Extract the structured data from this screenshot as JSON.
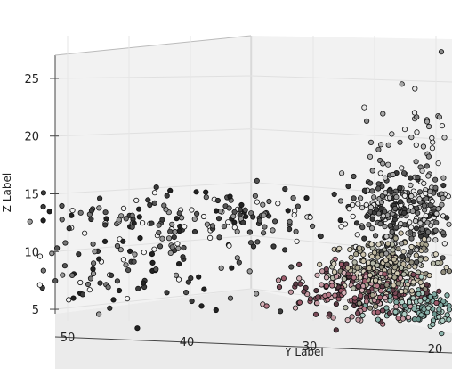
{
  "chart_data": {
    "type": "scatter",
    "projection": "3d",
    "title": "",
    "xlabel": "",
    "ylabel": "Y Label",
    "zlabel": "Z Label",
    "y_ticks": [
      "50",
      "40",
      "30",
      "20"
    ],
    "z_ticks": [
      "5",
      "10",
      "15",
      "20",
      "25"
    ],
    "ylim": [
      18,
      54
    ],
    "zlim": [
      4,
      26
    ],
    "grid": true,
    "marker": "circle, black edge",
    "colormap": "pink-gray-teal (by position)",
    "clusters": [
      {
        "y_center": 22,
        "z_center": 13.5,
        "spread_y": 3.5,
        "spread_z": 2.5,
        "count": 320,
        "tone": "gray"
      },
      {
        "y_center": 24,
        "z_center": 8.5,
        "spread_y": 3.0,
        "spread_z": 2.0,
        "count": 260,
        "tone": "beige"
      },
      {
        "y_center": 26,
        "z_center": 6.5,
        "spread_y": 4.0,
        "spread_z": 1.8,
        "count": 220,
        "tone": "pink"
      },
      {
        "y_center": 21,
        "z_center": 5.0,
        "spread_y": 2.5,
        "spread_z": 1.2,
        "count": 120,
        "tone": "teal"
      },
      {
        "y_center": 38,
        "z_center": 13.0,
        "spread_y": 10.0,
        "spread_z": 1.5,
        "count": 160,
        "tone": "dark"
      },
      {
        "y_center": 44,
        "z_center": 9.0,
        "spread_y": 8.0,
        "spread_z": 3.5,
        "count": 120,
        "tone": "dark"
      },
      {
        "y_center": 20,
        "z_center": 20.0,
        "spread_y": 4.0,
        "spread_z": 4.0,
        "count": 70,
        "tone": "light"
      }
    ]
  }
}
